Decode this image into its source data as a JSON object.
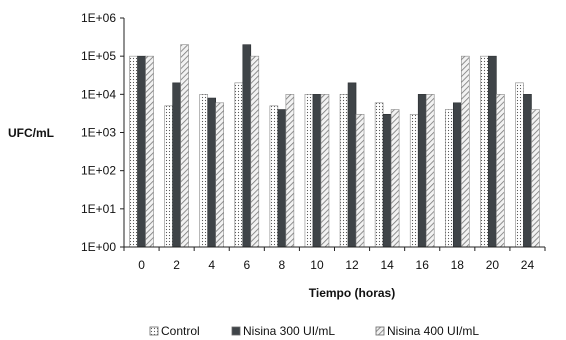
{
  "chart_data": {
    "type": "bar",
    "y_scale": "log",
    "ylabel": "UFC/mL",
    "xlabel": "Tiempo (horas)",
    "ylim": [
      1,
      1000000
    ],
    "y_ticks": [
      1,
      10,
      100,
      1000,
      10000,
      100000,
      1000000
    ],
    "y_tick_labels": [
      "1E+00",
      "1E+01",
      "1E+02",
      "1E+03",
      "1E+04",
      "1E+05",
      "1E+06"
    ],
    "categories": [
      "0",
      "2",
      "4",
      "6",
      "8",
      "10",
      "12",
      "14",
      "16",
      "18",
      "20",
      "24"
    ],
    "legend_position": "bottom",
    "series": [
      {
        "name": "Control",
        "pattern": "dots",
        "color": "#ffffff",
        "values": [
          100000,
          5000,
          10000,
          20000,
          5000,
          10000,
          10000,
          6000,
          3000,
          4000,
          100000,
          20000
        ]
      },
      {
        "name": "Nisina 300 UI/mL",
        "pattern": "solid",
        "color": "#3f4448",
        "values": [
          100000,
          20000,
          8000,
          200000,
          4000,
          10000,
          20000,
          3000,
          10000,
          6000,
          100000,
          10000
        ]
      },
      {
        "name": "Nisina 400 UI/mL",
        "pattern": "diagonal",
        "color": "#d0d0d0",
        "values": [
          100000,
          200000,
          6000,
          100000,
          10000,
          10000,
          3000,
          4000,
          10000,
          100000,
          10000,
          4000
        ]
      }
    ]
  }
}
